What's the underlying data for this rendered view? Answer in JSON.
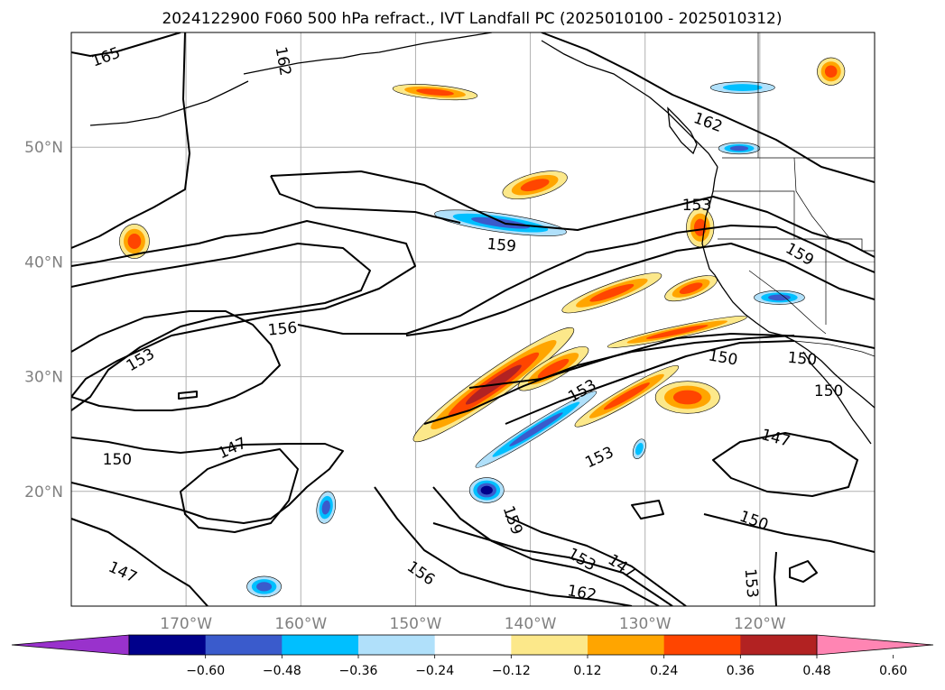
{
  "chart_data": {
    "type": "heatmap",
    "title": "2024122900 F060 500 hPa refract., IVT Landfall PC (2025010100 - 2025010312)",
    "map": {
      "projection": "PlateCarree",
      "lon_range": [
        -180,
        -110
      ],
      "lat_range": [
        10,
        60
      ],
      "gridlines": true,
      "lon_ticks": [
        {
          "value": -170,
          "label": "170°W"
        },
        {
          "value": -160,
          "label": "160°W"
        },
        {
          "value": -150,
          "label": "150°W"
        },
        {
          "value": -140,
          "label": "140°W"
        },
        {
          "value": -130,
          "label": "130°W"
        },
        {
          "value": -120,
          "label": "120°W"
        }
      ],
      "lat_ticks": [
        {
          "value": 50,
          "label": "50°N"
        },
        {
          "value": 40,
          "label": "40°N"
        },
        {
          "value": 30,
          "label": "30°N"
        },
        {
          "value": 20,
          "label": "20°N"
        }
      ]
    },
    "contour_labels": [
      {
        "text": "165",
        "lon": -177,
        "lat": 57.9,
        "angle": -20
      },
      {
        "text": "162",
        "lon": -161.5,
        "lat": 57.5,
        "angle": 80
      },
      {
        "text": "162",
        "lon": -124.5,
        "lat": 52.2,
        "angle": 20
      },
      {
        "text": "159",
        "lon": -142.5,
        "lat": 41.5,
        "angle": 5
      },
      {
        "text": "159",
        "lon": -116.5,
        "lat": 40.7,
        "angle": 30
      },
      {
        "text": "156",
        "lon": -161.6,
        "lat": 34.2,
        "angle": -5
      },
      {
        "text": "153",
        "lon": -174,
        "lat": 31.5,
        "angle": -30
      },
      {
        "text": "153",
        "lon": -135.5,
        "lat": 28.8,
        "angle": -30
      },
      {
        "text": "153",
        "lon": -134,
        "lat": 23.0,
        "angle": -25
      },
      {
        "text": "153",
        "lon": -125.5,
        "lat": 45.0,
        "angle": 0
      },
      {
        "text": "150",
        "lon": -123.2,
        "lat": 31.7,
        "angle": 10
      },
      {
        "text": "150",
        "lon": -114.0,
        "lat": 28.8,
        "angle": 0
      },
      {
        "text": "150",
        "lon": -116.3,
        "lat": 31.6,
        "angle": 5
      },
      {
        "text": "150",
        "lon": -176.0,
        "lat": 22.8,
        "angle": 0
      },
      {
        "text": "150",
        "lon": -120.5,
        "lat": 17.5,
        "angle": 20
      },
      {
        "text": "147",
        "lon": -166.0,
        "lat": 23.8,
        "angle": -25
      },
      {
        "text": "147",
        "lon": -118.6,
        "lat": 24.7,
        "angle": 15
      },
      {
        "text": "147",
        "lon": -175.5,
        "lat": 13.0,
        "angle": 25
      },
      {
        "text": "147",
        "lon": -132.0,
        "lat": 13.5,
        "angle": 35
      },
      {
        "text": "153",
        "lon": -120.7,
        "lat": 12.0,
        "angle": 85
      },
      {
        "text": "153",
        "lon": -135.5,
        "lat": 14.1,
        "angle": 30
      },
      {
        "text": "156",
        "lon": -149.5,
        "lat": 12.9,
        "angle": 35
      },
      {
        "text": "159",
        "lon": -141.5,
        "lat": 17.5,
        "angle": 70
      },
      {
        "text": "162",
        "lon": -135.5,
        "lat": 11.2,
        "angle": 10
      }
    ],
    "shading_regions": [
      {
        "lon": -143.2,
        "lat": 29.3,
        "rlon": 8.5,
        "rlat": 1.2,
        "angle": -35,
        "value": 0.55
      },
      {
        "lon": -138,
        "lat": 30.7,
        "rlon": 3.5,
        "rlat": 0.9,
        "angle": -30,
        "value": 0.45
      },
      {
        "lon": -131.6,
        "lat": 28.3,
        "rlon": 5.2,
        "rlat": 0.7,
        "angle": -30,
        "value": 0.42
      },
      {
        "lon": -126.3,
        "lat": 28.2,
        "rlon": 2.8,
        "rlat": 1.4,
        "angle": 0,
        "value": 0.45
      },
      {
        "lon": -127.2,
        "lat": 33.9,
        "rlon": 6.2,
        "rlat": 0.5,
        "angle": -12,
        "value": 0.4
      },
      {
        "lon": -125.2,
        "lat": 43.0,
        "rlon": 1.2,
        "rlat": 1.7,
        "angle": 0,
        "value": 0.45
      },
      {
        "lon": -126,
        "lat": 37.7,
        "rlon": 2.4,
        "rlat": 0.8,
        "angle": -20,
        "value": 0.4
      },
      {
        "lon": -132.9,
        "lat": 37.3,
        "rlon": 4.6,
        "rlat": 0.8,
        "angle": -20,
        "value": 0.4
      },
      {
        "lon": -139.6,
        "lat": 46.7,
        "rlon": 2.9,
        "rlat": 1.0,
        "angle": -15,
        "value": 0.42
      },
      {
        "lon": -148.3,
        "lat": 54.8,
        "rlon": 3.7,
        "rlat": 0.6,
        "angle": 5,
        "value": 0.45
      },
      {
        "lon": -174.5,
        "lat": 41.8,
        "rlon": 1.3,
        "rlat": 1.5,
        "angle": 0,
        "value": 0.42
      },
      {
        "lon": -113.8,
        "lat": 56.6,
        "rlon": 1.2,
        "rlat": 1.2,
        "angle": 20,
        "value": 0.4
      },
      {
        "lon": -142.6,
        "lat": 43.4,
        "rlon": 5.8,
        "rlat": 0.8,
        "angle": 8,
        "value": -0.42
      },
      {
        "lon": -143.8,
        "lat": 20.1,
        "rlon": 1.5,
        "rlat": 1.1,
        "angle": 0,
        "value": -0.5
      },
      {
        "lon": -139.5,
        "lat": 25.4,
        "rlon": 6.2,
        "rlat": 0.6,
        "angle": -32,
        "value": -0.38
      },
      {
        "lon": -118.3,
        "lat": 36.9,
        "rlon": 2.2,
        "rlat": 0.6,
        "angle": 0,
        "value": -0.38
      },
      {
        "lon": -163.2,
        "lat": 11.7,
        "rlon": 1.5,
        "rlat": 0.9,
        "angle": 0,
        "value": -0.45
      },
      {
        "lon": -157.8,
        "lat": 18.6,
        "rlon": 0.8,
        "rlat": 1.4,
        "angle": 10,
        "value": -0.38
      },
      {
        "lon": -121.5,
        "lat": 55.2,
        "rlon": 2.8,
        "rlat": 0.5,
        "angle": 0,
        "value": -0.35
      },
      {
        "lon": -121.8,
        "lat": 49.9,
        "rlon": 1.8,
        "rlat": 0.5,
        "angle": 0,
        "value": -0.38
      },
      {
        "lon": -130.5,
        "lat": 23.7,
        "rlon": 0.5,
        "rlat": 0.9,
        "angle": 20,
        "value": -0.3
      }
    ],
    "colorbar": {
      "extend": "both",
      "ticks": [
        -0.6,
        -0.48,
        -0.36,
        -0.24,
        -0.12,
        0.12,
        0.24,
        0.36,
        0.48,
        0.6
      ],
      "tick_labels": [
        "−0.60",
        "−0.48",
        "−0.36",
        "−0.24",
        "−0.12",
        "0.12",
        "0.24",
        "0.36",
        "0.48",
        "0.60"
      ],
      "colors": [
        "#9932cc",
        "#00008b",
        "#3a5bcc",
        "#00bfff",
        "#b0e0fa",
        "#ffffff",
        "#fce88a",
        "#ffa500",
        "#ff4500",
        "#b22222",
        "#ff85b3"
      ]
    }
  }
}
